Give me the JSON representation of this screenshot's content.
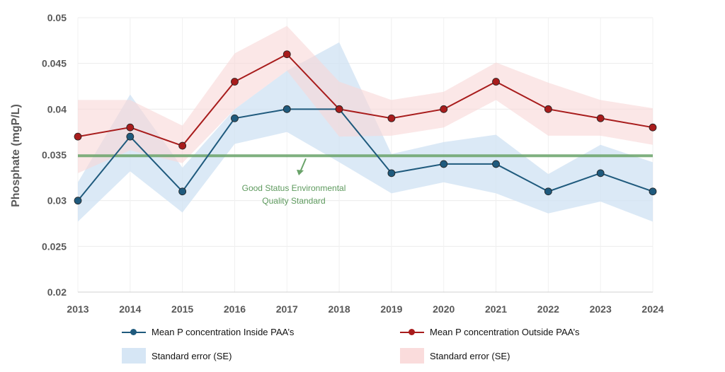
{
  "chart_data": {
    "type": "line",
    "ylabel": "Phosphate (mgP/L)",
    "xlabel": "",
    "ylim": [
      0.02,
      0.05
    ],
    "yticks": [
      "0.02",
      "0.025",
      "0.03",
      "0.035",
      "0.04",
      "0.045",
      "0.05"
    ],
    "grid": true,
    "legend_position": "bottom",
    "categories": [
      "2013",
      "2014",
      "2015",
      "2016",
      "2017",
      "2018",
      "2019",
      "2020",
      "2021",
      "2022",
      "2023",
      "2024"
    ],
    "series": [
      {
        "name": "Mean P concentration Inside PAA’s",
        "color": "#1f5a7d",
        "values": [
          0.03,
          0.037,
          0.031,
          0.039,
          0.04,
          0.04,
          0.033,
          0.034,
          0.034,
          0.031,
          0.033,
          0.031
        ],
        "se_upper": [
          0.032,
          0.0416,
          0.0336,
          0.04,
          0.0442,
          0.0473,
          0.0351,
          0.0364,
          0.0372,
          0.0329,
          0.0361,
          0.0342
        ],
        "se_lower": [
          0.0277,
          0.0332,
          0.0287,
          0.0362,
          0.0375,
          0.0342,
          0.0308,
          0.032,
          0.0308,
          0.0286,
          0.0299,
          0.0277
        ],
        "se_name": "Standard error (SE)",
        "se_color": "#cfe2f3"
      },
      {
        "name": "Mean P concentration Outside PAA’s",
        "color": "#a81c1c",
        "values": [
          0.037,
          0.038,
          0.036,
          0.043,
          0.046,
          0.04,
          0.039,
          0.04,
          0.043,
          0.04,
          0.039,
          0.038
        ],
        "se_upper": [
          0.041,
          0.041,
          0.0382,
          0.0461,
          0.0491,
          0.043,
          0.041,
          0.0419,
          0.0451,
          0.0429,
          0.041,
          0.0401
        ],
        "se_lower": [
          0.033,
          0.0355,
          0.0341,
          0.04,
          0.0442,
          0.037,
          0.0371,
          0.038,
          0.041,
          0.0371,
          0.0371,
          0.0361
        ],
        "se_name": "Standard error (SE)",
        "se_color": "#f8d7d7"
      }
    ],
    "reference_line": {
      "value": 0.0349,
      "label_line1": "Good Status Environmental",
      "label_line2": "Quality Standard",
      "color": "#6aa36a"
    }
  }
}
